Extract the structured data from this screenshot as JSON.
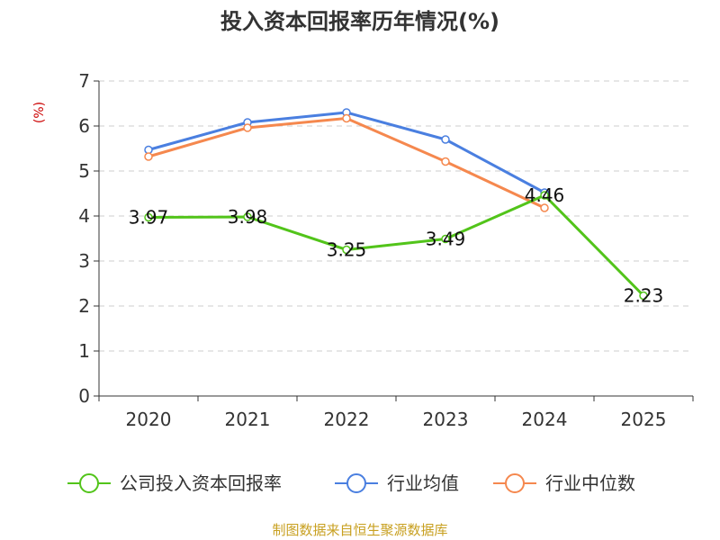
{
  "chart_data": {
    "type": "line",
    "title": "投入资本回报率历年情况(%)",
    "ylabel": "(%)",
    "xlabel": "",
    "categories": [
      "2020",
      "2021",
      "2022",
      "2023",
      "2024",
      "2025"
    ],
    "ylim": [
      0,
      7
    ],
    "yticks": [
      0,
      1,
      2,
      3,
      4,
      5,
      6,
      7
    ],
    "grid": true,
    "legend_position": "bottom",
    "series": [
      {
        "name": "公司投入资本回报率",
        "color": "#52c41a",
        "values": [
          3.97,
          3.98,
          3.25,
          3.49,
          4.46,
          2.23
        ],
        "labels": [
          "3.97",
          "3.98",
          "3.25",
          "3.49",
          "4.46",
          "2.23"
        ]
      },
      {
        "name": "行业均值",
        "color": "#4a7fe0",
        "values": [
          5.47,
          6.08,
          6.3,
          5.7,
          4.52,
          null
        ]
      },
      {
        "name": "行业中位数",
        "color": "#f5884e",
        "values": [
          5.32,
          5.96,
          6.17,
          5.21,
          4.18,
          null
        ]
      }
    ]
  },
  "colors": {
    "ylabel": "#cc0000",
    "source": "#c8a020",
    "axis": "#333333",
    "grid": "#cccccc"
  },
  "source": "制图数据来自恒生聚源数据库"
}
